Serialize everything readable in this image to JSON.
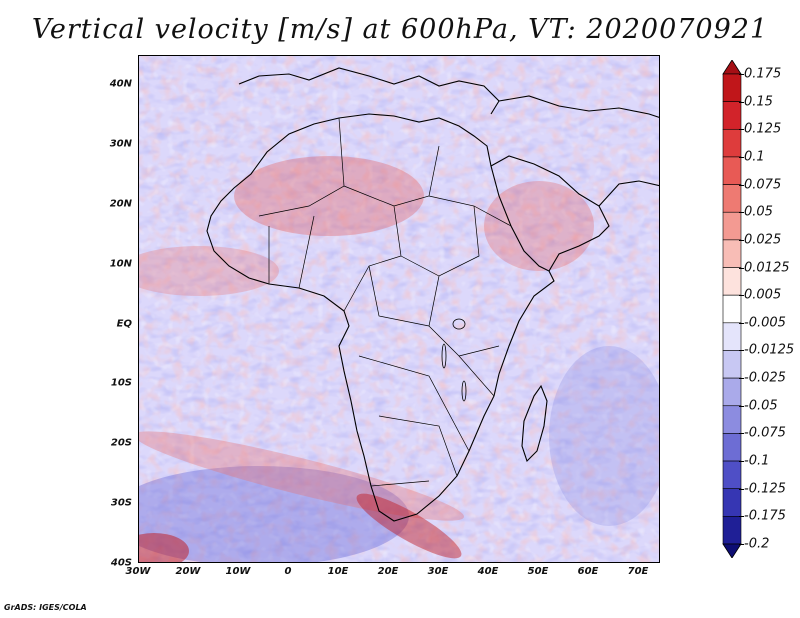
{
  "title": "Vertical velocity [m/s] at 600hPa, VT: 2020070921",
  "credit": "GrADS: IGES/COLA",
  "latitude_labels": [
    "40N",
    "30N",
    "20N",
    "10N",
    "EQ",
    "10S",
    "20S",
    "30S",
    "40S"
  ],
  "longitude_labels": [
    "30W",
    "20W",
    "10W",
    "0",
    "10E",
    "20E",
    "30E",
    "40E",
    "50E",
    "60E",
    "70E"
  ],
  "colorbar": {
    "labels": [
      "0.175",
      "0.15",
      "0.125",
      "0.1",
      "0.075",
      "0.05",
      "0.025",
      "0.0125",
      "0.005",
      "-0.005",
      "-0.0125",
      "-0.025",
      "-0.05",
      "-0.075",
      "-0.1",
      "-0.125",
      "-0.175",
      "-0.2"
    ],
    "colors": [
      "#a50f15",
      "#c0161a",
      "#d2232a",
      "#de3c3c",
      "#e85a55",
      "#ee7a72",
      "#f39a92",
      "#f8bdb6",
      "#fde2dd",
      "#ffffff",
      "#e4e4fb",
      "#c8c8f3",
      "#aaaaea",
      "#8c8ce0",
      "#6d6dd4",
      "#4f4fc6",
      "#3636b3",
      "#1f1f96",
      "#0d0d73"
    ]
  },
  "map": {
    "region": "Africa",
    "lat_range": [
      -40,
      45
    ],
    "lon_range": [
      -30,
      75
    ],
    "coastline_color": "#000000",
    "field": "Vertical velocity"
  }
}
